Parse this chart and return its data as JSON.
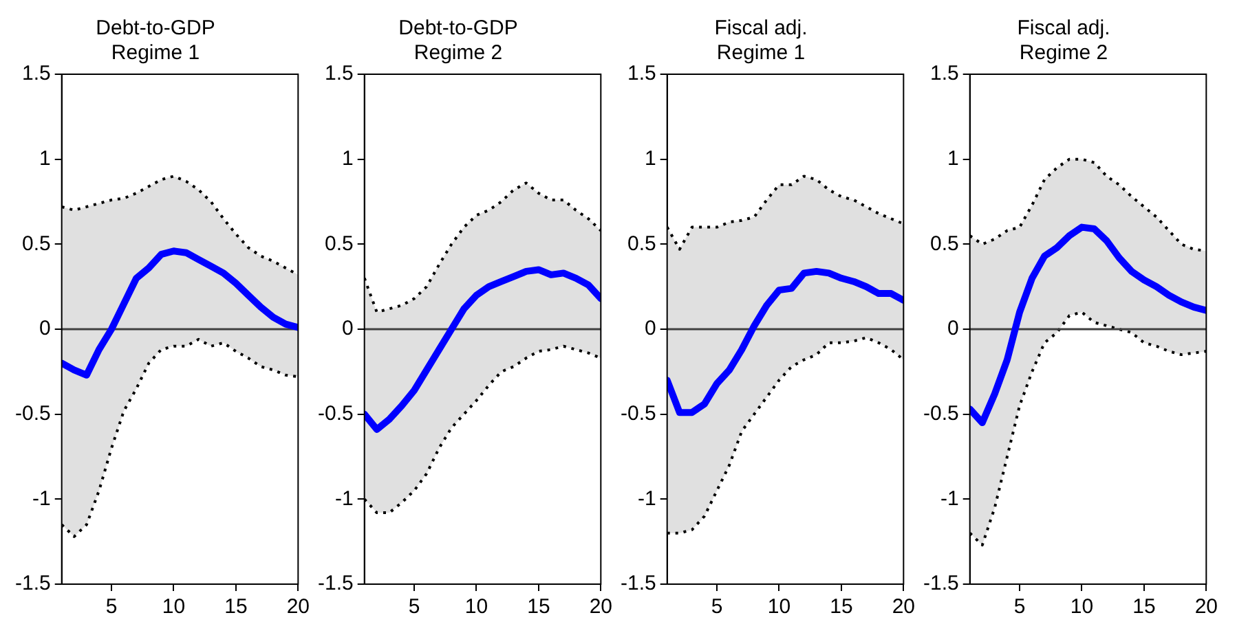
{
  "chart_data": [
    {
      "type": "line",
      "title": "Debt-to-GDP\nRegime 1",
      "x": [
        1,
        2,
        3,
        4,
        5,
        6,
        7,
        8,
        9,
        10,
        11,
        12,
        13,
        14,
        15,
        16,
        17,
        18,
        19,
        20
      ],
      "xlim": [
        1,
        20
      ],
      "xticks": [
        5,
        10,
        15,
        20
      ],
      "ylim": [
        -1.5,
        1.5
      ],
      "yticks": [
        -1.5,
        -1,
        -0.5,
        0,
        0.5,
        1,
        1.5
      ],
      "grid": false,
      "ref_lines": [
        {
          "axis": "y",
          "value": 0,
          "color": "#404040"
        }
      ],
      "series": [
        {
          "color": "#0000ff",
          "values": [
            -0.2,
            -0.24,
            -0.27,
            -0.12,
            0.0,
            0.15,
            0.3,
            0.36,
            0.44,
            0.46,
            0.45,
            0.41,
            0.37,
            0.33,
            0.27,
            0.2,
            0.13,
            0.07,
            0.03,
            0.01
          ],
          "upper": [
            0.72,
            0.7,
            0.72,
            0.74,
            0.76,
            0.77,
            0.8,
            0.84,
            0.88,
            0.9,
            0.87,
            0.82,
            0.75,
            0.65,
            0.56,
            0.48,
            0.43,
            0.4,
            0.36,
            0.32
          ],
          "lower": [
            -1.15,
            -1.22,
            -1.15,
            -0.95,
            -0.7,
            -0.48,
            -0.35,
            -0.2,
            -0.12,
            -0.1,
            -0.1,
            -0.06,
            -0.1,
            -0.08,
            -0.13,
            -0.17,
            -0.22,
            -0.24,
            -0.27,
            -0.28
          ]
        },
        {
          "type": "line",
          "color": "#000000",
          "line_style": "dotted",
          "values": [
            0.72,
            0.7,
            0.72,
            0.74,
            0.76,
            0.77,
            0.8,
            0.84,
            0.88,
            0.9,
            0.87,
            0.82,
            0.75,
            0.65,
            0.56,
            0.48,
            0.43,
            0.4,
            0.36,
            0.32
          ]
        },
        {
          "type": "line",
          "color": "#000000",
          "line_style": "dotted",
          "values": [
            -1.15,
            -1.22,
            -1.15,
            -0.95,
            -0.7,
            -0.48,
            -0.35,
            -0.2,
            -0.12,
            -0.1,
            -0.1,
            -0.06,
            -0.1,
            -0.08,
            -0.13,
            -0.17,
            -0.22,
            -0.24,
            -0.27,
            -0.28
          ]
        }
      ]
    },
    {
      "type": "line",
      "title": "Debt-to-GDP\nRegime 2",
      "x": [
        1,
        2,
        3,
        4,
        5,
        6,
        7,
        8,
        9,
        10,
        11,
        12,
        13,
        14,
        15,
        16,
        17,
        18,
        19,
        20
      ],
      "xlim": [
        1,
        20
      ],
      "xticks": [
        5,
        10,
        15,
        20
      ],
      "ylim": [
        -1.5,
        1.5
      ],
      "yticks": [
        -1.5,
        -1,
        -0.5,
        0,
        0.5,
        1,
        1.5
      ],
      "grid": false,
      "ref_lines": [
        {
          "axis": "y",
          "value": 0,
          "color": "#404040"
        }
      ],
      "series": [
        {
          "color": "#0000ff",
          "values": [
            -0.5,
            -0.59,
            -0.53,
            -0.45,
            -0.36,
            -0.24,
            -0.12,
            0.0,
            0.12,
            0.2,
            0.25,
            0.28,
            0.31,
            0.34,
            0.35,
            0.32,
            0.33,
            0.3,
            0.26,
            0.18
          ],
          "upper": [
            0.3,
            0.1,
            0.12,
            0.14,
            0.18,
            0.25,
            0.38,
            0.5,
            0.6,
            0.67,
            0.7,
            0.75,
            0.82,
            0.86,
            0.8,
            0.76,
            0.76,
            0.7,
            0.65,
            0.58
          ],
          "lower": [
            -1.0,
            -1.08,
            -1.08,
            -1.02,
            -0.95,
            -0.85,
            -0.7,
            -0.58,
            -0.5,
            -0.42,
            -0.33,
            -0.25,
            -0.22,
            -0.17,
            -0.13,
            -0.12,
            -0.1,
            -0.12,
            -0.14,
            -0.17
          ]
        },
        {
          "type": "line",
          "color": "#000000",
          "line_style": "dotted",
          "values": [
            0.3,
            0.1,
            0.12,
            0.14,
            0.18,
            0.25,
            0.38,
            0.5,
            0.6,
            0.67,
            0.7,
            0.75,
            0.82,
            0.86,
            0.8,
            0.76,
            0.76,
            0.7,
            0.65,
            0.58
          ]
        },
        {
          "type": "line",
          "color": "#000000",
          "line_style": "dotted",
          "values": [
            -1.0,
            -1.08,
            -1.08,
            -1.02,
            -0.95,
            -0.85,
            -0.7,
            -0.58,
            -0.5,
            -0.42,
            -0.33,
            -0.25,
            -0.22,
            -0.17,
            -0.13,
            -0.12,
            -0.1,
            -0.12,
            -0.14,
            -0.17
          ]
        }
      ]
    },
    {
      "type": "line",
      "title": "Fiscal adj.\nRegime 1",
      "x": [
        1,
        2,
        3,
        4,
        5,
        6,
        7,
        8,
        9,
        10,
        11,
        12,
        13,
        14,
        15,
        16,
        17,
        18,
        19,
        20
      ],
      "xlim": [
        1,
        20
      ],
      "xticks": [
        5,
        10,
        15,
        20
      ],
      "ylim": [
        -1.5,
        1.5
      ],
      "yticks": [
        -1.5,
        -1,
        -0.5,
        0,
        0.5,
        1,
        1.5
      ],
      "grid": false,
      "ref_lines": [
        {
          "axis": "y",
          "value": 0,
          "color": "#404040"
        }
      ],
      "series": [
        {
          "color": "#0000ff",
          "values": [
            -0.3,
            -0.49,
            -0.49,
            -0.44,
            -0.32,
            -0.24,
            -0.12,
            0.02,
            0.14,
            0.23,
            0.24,
            0.33,
            0.34,
            0.33,
            0.3,
            0.28,
            0.25,
            0.21,
            0.21,
            0.17
          ],
          "upper": [
            0.6,
            0.47,
            0.6,
            0.6,
            0.6,
            0.63,
            0.64,
            0.66,
            0.76,
            0.85,
            0.85,
            0.9,
            0.88,
            0.82,
            0.78,
            0.76,
            0.72,
            0.68,
            0.65,
            0.62
          ],
          "lower": [
            -1.2,
            -1.2,
            -1.18,
            -1.1,
            -0.95,
            -0.8,
            -0.6,
            -0.5,
            -0.4,
            -0.3,
            -0.22,
            -0.18,
            -0.15,
            -0.08,
            -0.08,
            -0.07,
            -0.05,
            -0.08,
            -0.12,
            -0.18
          ]
        },
        {
          "type": "line",
          "color": "#000000",
          "line_style": "dotted",
          "values": [
            0.6,
            0.47,
            0.6,
            0.6,
            0.6,
            0.63,
            0.64,
            0.66,
            0.76,
            0.85,
            0.85,
            0.9,
            0.88,
            0.82,
            0.78,
            0.76,
            0.72,
            0.68,
            0.65,
            0.62
          ]
        },
        {
          "type": "line",
          "color": "#000000",
          "line_style": "dotted",
          "values": [
            -1.2,
            -1.2,
            -1.18,
            -1.1,
            -0.95,
            -0.8,
            -0.6,
            -0.5,
            -0.4,
            -0.3,
            -0.22,
            -0.18,
            -0.15,
            -0.08,
            -0.08,
            -0.07,
            -0.05,
            -0.08,
            -0.12,
            -0.18
          ]
        }
      ]
    },
    {
      "type": "line",
      "title": "Fiscal adj.\nRegime 2",
      "x": [
        1,
        2,
        3,
        4,
        5,
        6,
        7,
        8,
        9,
        10,
        11,
        12,
        13,
        14,
        15,
        16,
        17,
        18,
        19,
        20
      ],
      "xlim": [
        1,
        20
      ],
      "xticks": [
        5,
        10,
        15,
        20
      ],
      "ylim": [
        -1.5,
        1.5
      ],
      "yticks": [
        -1.5,
        -1,
        -0.5,
        0,
        0.5,
        1,
        1.5
      ],
      "grid": false,
      "ref_lines": [
        {
          "axis": "y",
          "value": 0,
          "color": "#404040"
        }
      ],
      "series": [
        {
          "color": "#0000ff",
          "values": [
            -0.47,
            -0.55,
            -0.38,
            -0.18,
            0.1,
            0.3,
            0.43,
            0.48,
            0.55,
            0.6,
            0.59,
            0.52,
            0.42,
            0.34,
            0.29,
            0.25,
            0.2,
            0.16,
            0.13,
            0.11
          ],
          "upper": [
            0.55,
            0.5,
            0.53,
            0.58,
            0.6,
            0.73,
            0.88,
            0.95,
            1.0,
            1.0,
            0.98,
            0.9,
            0.85,
            0.78,
            0.72,
            0.66,
            0.58,
            0.5,
            0.47,
            0.46
          ],
          "lower": [
            -1.2,
            -1.27,
            -1.05,
            -0.75,
            -0.45,
            -0.25,
            -0.08,
            -0.02,
            0.08,
            0.1,
            0.04,
            0.02,
            0.0,
            -0.02,
            -0.08,
            -0.1,
            -0.13,
            -0.15,
            -0.14,
            -0.13
          ]
        },
        {
          "type": "line",
          "color": "#000000",
          "line_style": "dotted",
          "values": [
            0.55,
            0.5,
            0.53,
            0.58,
            0.6,
            0.73,
            0.88,
            0.95,
            1.0,
            1.0,
            0.98,
            0.9,
            0.85,
            0.78,
            0.72,
            0.66,
            0.58,
            0.5,
            0.47,
            0.46
          ]
        },
        {
          "type": "line",
          "color": "#000000",
          "line_style": "dotted",
          "values": [
            -1.2,
            -1.27,
            -1.05,
            -0.75,
            -0.45,
            -0.25,
            -0.08,
            -0.02,
            0.08,
            0.1,
            0.04,
            0.02,
            0.0,
            -0.02,
            -0.08,
            -0.1,
            -0.13,
            -0.15,
            -0.14,
            -0.13
          ]
        }
      ]
    }
  ]
}
